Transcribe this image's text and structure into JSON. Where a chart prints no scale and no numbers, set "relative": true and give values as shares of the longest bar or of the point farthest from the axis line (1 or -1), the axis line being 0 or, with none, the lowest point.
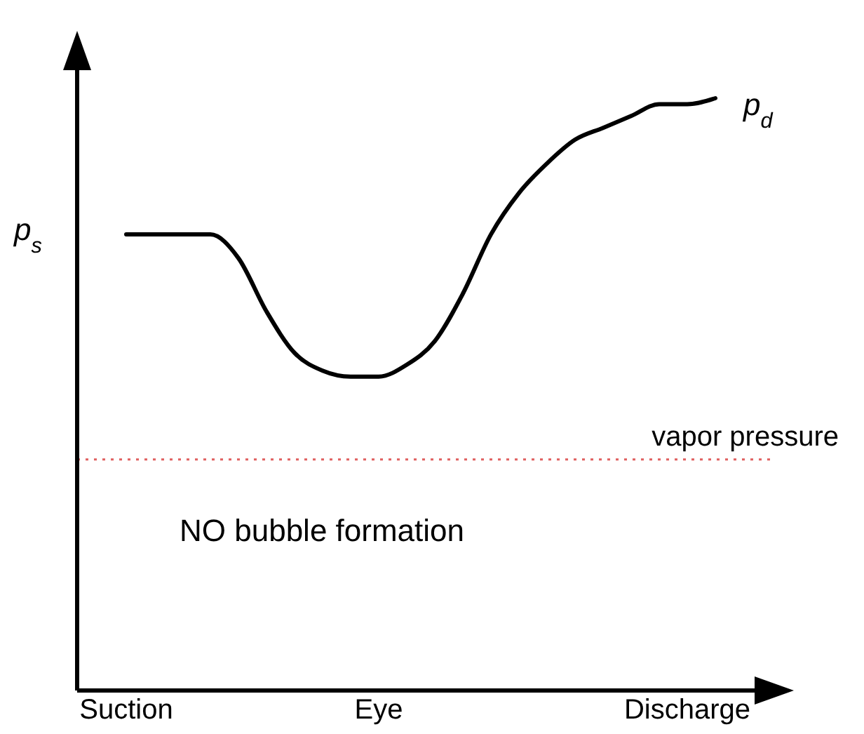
{
  "chart_data": {
    "type": "line",
    "relative": true,
    "categories": [
      "Suction",
      null,
      null,
      null,
      null,
      null,
      null,
      null,
      null,
      "Eye",
      null,
      null,
      null,
      null,
      null,
      null,
      null,
      null,
      null,
      null,
      "Discharge",
      null
    ],
    "series": [
      {
        "color": "#000000",
        "values": [
          0.77,
          0.77,
          0.77,
          0.77,
          0.73,
          0.64,
          0.57,
          0.54,
          0.53,
          0.53,
          0.55,
          0.59,
          0.67,
          0.77,
          0.84,
          0.89,
          0.93,
          0.95,
          0.97,
          0.99,
          0.99,
          1
        ]
      }
    ],
    "ref_lines": [
      {
        "axis": "y",
        "value": 0.39,
        "label": "vapor pressure",
        "color": "#e06060",
        "line_style": "dotted"
      }
    ],
    "annotations": [
      "p$_{s}$",
      "p$_{d}$",
      "NO bubble formation"
    ],
    "marker": "none",
    "line_style": "solid",
    "grid": false
  }
}
